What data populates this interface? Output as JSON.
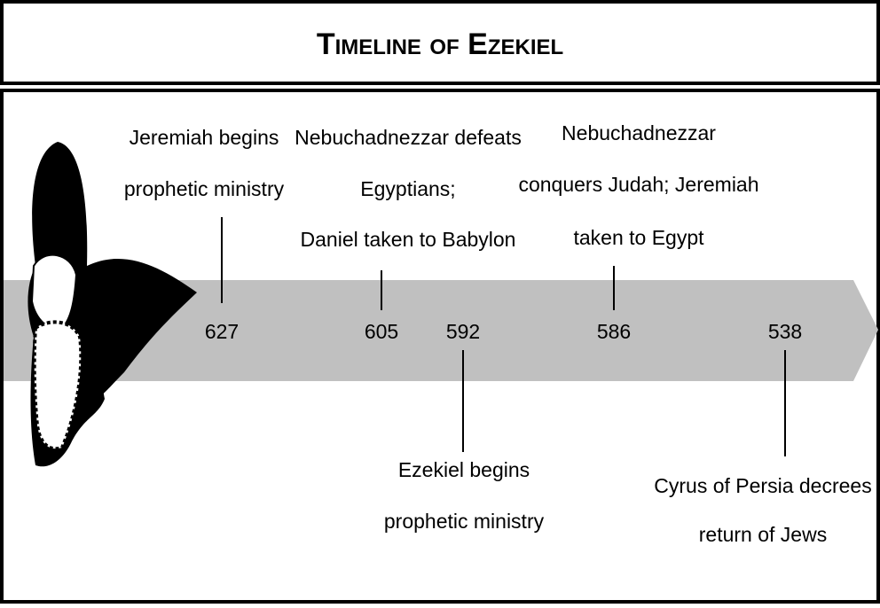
{
  "header": {
    "title": "Timeline of Ezekiel"
  },
  "events": [
    {
      "year": "627",
      "label": [
        "Jeremiah begins",
        "prophetic ministry"
      ]
    },
    {
      "year": "605",
      "label": [
        "Nebuchadnezzar defeats",
        "Egyptians;",
        "Daniel taken to Babylon"
      ]
    },
    {
      "year": "592",
      "label": [
        "Ezekiel begins",
        "prophetic ministry"
      ]
    },
    {
      "year": "586",
      "label": [
        "Nebuchadnezzar",
        "conquers Judah; Jeremiah",
        "taken to Egypt"
      ]
    },
    {
      "year": "538",
      "label": [
        "Cyrus of Persia decrees",
        "return of Jews"
      ]
    }
  ]
}
